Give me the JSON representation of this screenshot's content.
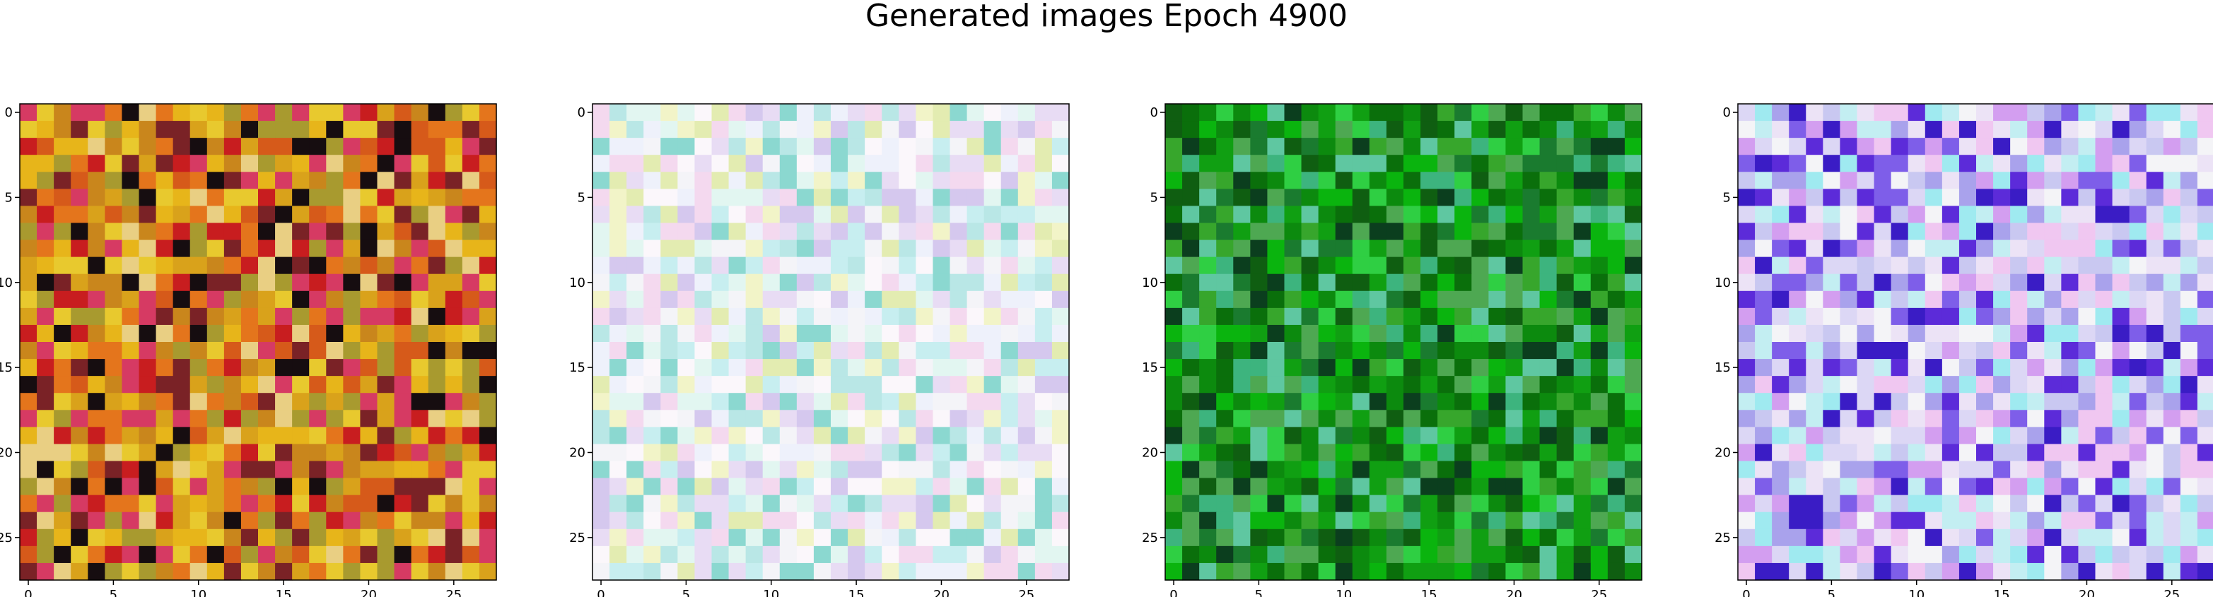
{
  "title": "Generated images Epoch 4900",
  "chart_data": {
    "type": "heatmap",
    "grid_size": 28,
    "x_ticks": [
      0,
      5,
      10,
      15,
      20,
      25
    ],
    "y_ticks": [
      0,
      5,
      10,
      15,
      20,
      25
    ],
    "x_range": [
      -0.5,
      27.5
    ],
    "y_range": [
      -0.5,
      27.5
    ],
    "panels": [
      {
        "palette": [
          "#d9a21b",
          "#e7b51a",
          "#c9861c",
          "#e4751c",
          "#d65a1a",
          "#c81d1f",
          "#e8c92e",
          "#a89a2f",
          "#e9cf83",
          "#7a2226",
          "#160d10",
          "#d63a63"
        ]
      },
      {
        "palette": [
          "#f4f4f8",
          "#fbf7fb",
          "#eef1fb",
          "#e8dcf4",
          "#f4d9ef",
          "#e2f6f1",
          "#c7eef0",
          "#b9e7e6",
          "#f2f4c8",
          "#e3ecb1",
          "#d5c8ee",
          "#8bd8d0"
        ]
      },
      {
        "palette": [
          "#0c8a0e",
          "#109f12",
          "#0a6f0b",
          "#0ab40e",
          "#37a62c",
          "#1a7b2f",
          "#0f5e11",
          "#3db47e",
          "#2fcf43",
          "#5fc7a1",
          "#0b3e1e",
          "#4ea852"
        ]
      },
      {
        "palette": [
          "#dcd7f5",
          "#c9c8f1",
          "#a9a2ec",
          "#f0c7f1",
          "#ece3f6",
          "#c3eef2",
          "#9feaf0",
          "#7e5ee9",
          "#5c2bd9",
          "#d39ef0",
          "#f4f4f7",
          "#3a1cc5"
        ]
      }
    ]
  }
}
